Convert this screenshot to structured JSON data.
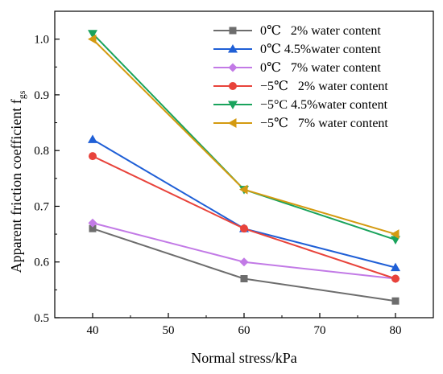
{
  "chart_data": {
    "type": "line",
    "xlabel": "Normal stress/kPa",
    "ylabel": "Apparent friction coefficient f",
    "ylabel_subscript": "gs",
    "xlim": [
      35,
      85
    ],
    "ylim": [
      0.5,
      1.05
    ],
    "xticks": [
      40,
      50,
      60,
      70,
      80
    ],
    "yticks": [
      0.5,
      0.6,
      0.7,
      0.8,
      0.9,
      1.0
    ],
    "xtick_labels": [
      "40",
      "50",
      "60",
      "70",
      "80"
    ],
    "ytick_labels": [
      "0.5",
      "0.6",
      "0.7",
      "0.8",
      "0.9",
      "1.0"
    ],
    "grid": false,
    "legend_position": "top-right",
    "x": [
      40,
      60,
      80
    ],
    "series": [
      {
        "name": "0℃   2% water content",
        "values": [
          0.66,
          0.57,
          0.53
        ],
        "color": "#6d6d6d",
        "marker": "square"
      },
      {
        "name": "0℃ 4.5%water content",
        "values": [
          0.82,
          0.66,
          0.59
        ],
        "color": "#1f5fd6",
        "marker": "triangle-up"
      },
      {
        "name": "0℃   7% water content",
        "values": [
          0.67,
          0.6,
          0.57
        ],
        "color": "#c27ae6",
        "marker": "diamond"
      },
      {
        "name": "−5℃   2% water content",
        "values": [
          0.79,
          0.66,
          0.57
        ],
        "color": "#e8433b",
        "marker": "circle"
      },
      {
        "name": "−5°C 4.5%water content",
        "values": [
          1.01,
          0.73,
          0.64
        ],
        "color": "#19a35c",
        "marker": "triangle-down"
      },
      {
        "name": "−5℃   7% water content",
        "values": [
          1.0,
          0.73,
          0.65
        ],
        "color": "#d49a10",
        "marker": "triangle-left"
      }
    ]
  }
}
